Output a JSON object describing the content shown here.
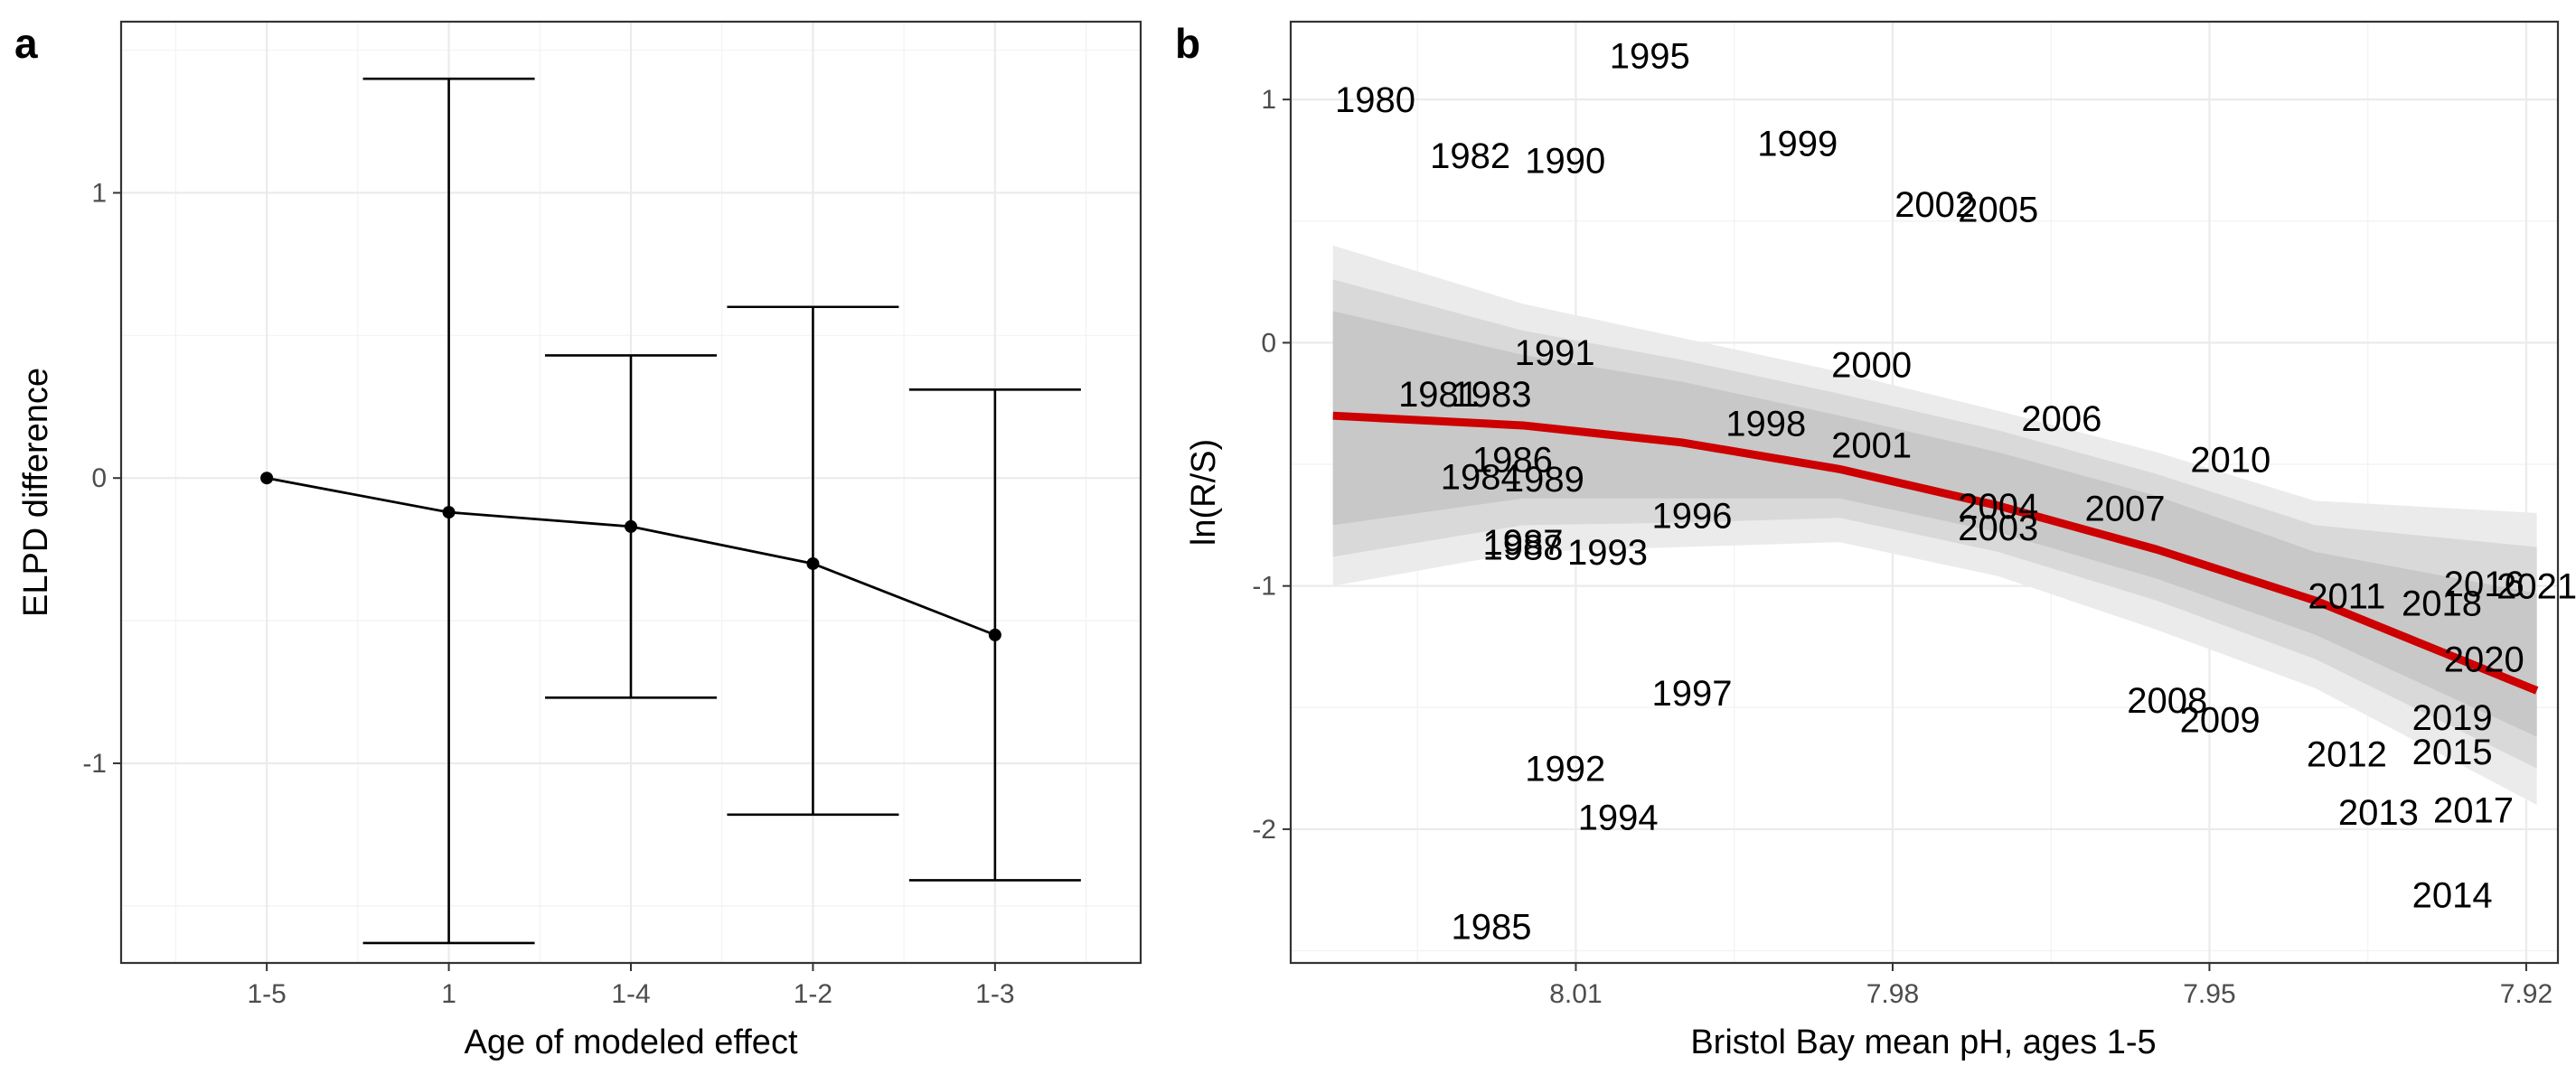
{
  "chart_data": [
    {
      "type": "line",
      "panel_label": "a",
      "xlabel": "Age of modeled effect",
      "ylabel": "ELPD difference",
      "categories": [
        "1-5",
        "1",
        "1-4",
        "1-2",
        "1-3"
      ],
      "ylim": [
        -1.7,
        1.6
      ],
      "yticks": [
        -1,
        0,
        1
      ],
      "grid": true,
      "series": [
        {
          "values": [
            0,
            -0.12,
            -0.17,
            -0.3,
            -0.55
          ],
          "error_low": [
            0,
            -1.63,
            -0.77,
            -1.18,
            -1.41
          ],
          "error_high": [
            0,
            1.4,
            0.43,
            0.6,
            0.31
          ]
        }
      ]
    },
    {
      "type": "scatter",
      "panel_label": "b",
      "xlabel": "Bristol Bay mean pH, ages 1-5",
      "ylabel": "ln(R/S)",
      "xlim": [
        8.037,
        7.917
      ],
      "x_reversed": true,
      "xticks": [
        8.01,
        7.98,
        7.95,
        7.92
      ],
      "ylim": [
        -2.55,
        1.32
      ],
      "yticks": [
        -2,
        -1,
        0,
        1
      ],
      "grid": true,
      "points": [
        {
          "label": "1980",
          "x": 8.029,
          "y": 1.0
        },
        {
          "label": "1981",
          "x": 8.023,
          "y": -0.21
        },
        {
          "label": "1982",
          "x": 8.02,
          "y": 0.77
        },
        {
          "label": "1983",
          "x": 8.018,
          "y": -0.21
        },
        {
          "label": "1984",
          "x": 8.019,
          "y": -0.55
        },
        {
          "label": "1985",
          "x": 8.018,
          "y": -2.4
        },
        {
          "label": "1986",
          "x": 8.016,
          "y": -0.48
        },
        {
          "label": "1987",
          "x": 8.015,
          "y": -0.82
        },
        {
          "label": "1988",
          "x": 8.015,
          "y": -0.84
        },
        {
          "label": "1989",
          "x": 8.013,
          "y": -0.56
        },
        {
          "label": "1990",
          "x": 8.011,
          "y": 0.75
        },
        {
          "label": "1991",
          "x": 8.012,
          "y": -0.04
        },
        {
          "label": "1992",
          "x": 8.011,
          "y": -1.75
        },
        {
          "label": "1993",
          "x": 8.007,
          "y": -0.86
        },
        {
          "label": "1994",
          "x": 8.006,
          "y": -1.95
        },
        {
          "label": "1995",
          "x": 8.003,
          "y": 1.18
        },
        {
          "label": "1996",
          "x": 7.999,
          "y": -0.71
        },
        {
          "label": "1997",
          "x": 7.999,
          "y": -1.44
        },
        {
          "label": "1998",
          "x": 7.992,
          "y": -0.33
        },
        {
          "label": "1999",
          "x": 7.989,
          "y": 0.82
        },
        {
          "label": "2000",
          "x": 7.982,
          "y": -0.09
        },
        {
          "label": "2001",
          "x": 7.982,
          "y": -0.42
        },
        {
          "label": "2002",
          "x": 7.976,
          "y": 0.57
        },
        {
          "label": "2003",
          "x": 7.97,
          "y": -0.76
        },
        {
          "label": "2004",
          "x": 7.97,
          "y": -0.67
        },
        {
          "label": "2005",
          "x": 7.97,
          "y": 0.55
        },
        {
          "label": "2006",
          "x": 7.964,
          "y": -0.31
        },
        {
          "label": "2007",
          "x": 7.958,
          "y": -0.68
        },
        {
          "label": "2008",
          "x": 7.954,
          "y": -1.47
        },
        {
          "label": "2009",
          "x": 7.949,
          "y": -1.55
        },
        {
          "label": "2010",
          "x": 7.948,
          "y": -0.48
        },
        {
          "label": "2011",
          "x": 7.937,
          "y": -1.04
        },
        {
          "label": "2012",
          "x": 7.937,
          "y": -1.69
        },
        {
          "label": "2013",
          "x": 7.934,
          "y": -1.93
        },
        {
          "label": "2014",
          "x": 7.927,
          "y": -2.27
        },
        {
          "label": "2015",
          "x": 7.927,
          "y": -1.68
        },
        {
          "label": "2016",
          "x": 7.924,
          "y": -0.99
        },
        {
          "label": "2017",
          "x": 7.925,
          "y": -1.92
        },
        {
          "label": "2018",
          "x": 7.928,
          "y": -1.07
        },
        {
          "label": "2019",
          "x": 7.927,
          "y": -1.54
        },
        {
          "label": "2020",
          "x": 7.924,
          "y": -1.3
        },
        {
          "label": "2021",
          "x": 7.919,
          "y": -1.0
        }
      ],
      "fit_line": {
        "color": "#cc0000",
        "x": [
          8.033,
          8.015,
          8.0,
          7.985,
          7.97,
          7.955,
          7.94,
          7.919
        ],
        "y": [
          -0.3,
          -0.34,
          -0.41,
          -0.52,
          -0.67,
          -0.85,
          -1.06,
          -1.43
        ]
      },
      "ribbons": [
        {
          "color": "#ebebeb",
          "lower": [
            -1.0,
            -0.86,
            -0.84,
            -0.82,
            -0.96,
            -1.18,
            -1.42,
            -1.9
          ],
          "upper": [
            0.4,
            0.16,
            0.02,
            -0.12,
            -0.28,
            -0.45,
            -0.65,
            -0.7
          ]
        },
        {
          "color": "#d9d9d9",
          "lower": [
            -0.88,
            -0.75,
            -0.74,
            -0.72,
            -0.86,
            -1.06,
            -1.3,
            -1.75
          ],
          "upper": [
            0.26,
            0.05,
            -0.07,
            -0.21,
            -0.36,
            -0.54,
            -0.75,
            -0.84
          ]
        },
        {
          "color": "#c8c8c8",
          "lower": [
            -0.75,
            -0.64,
            -0.64,
            -0.64,
            -0.78,
            -0.97,
            -1.2,
            -1.62
          ],
          "upper": [
            0.13,
            -0.05,
            -0.16,
            -0.3,
            -0.45,
            -0.63,
            -0.86,
            -1.03
          ]
        }
      ]
    }
  ]
}
